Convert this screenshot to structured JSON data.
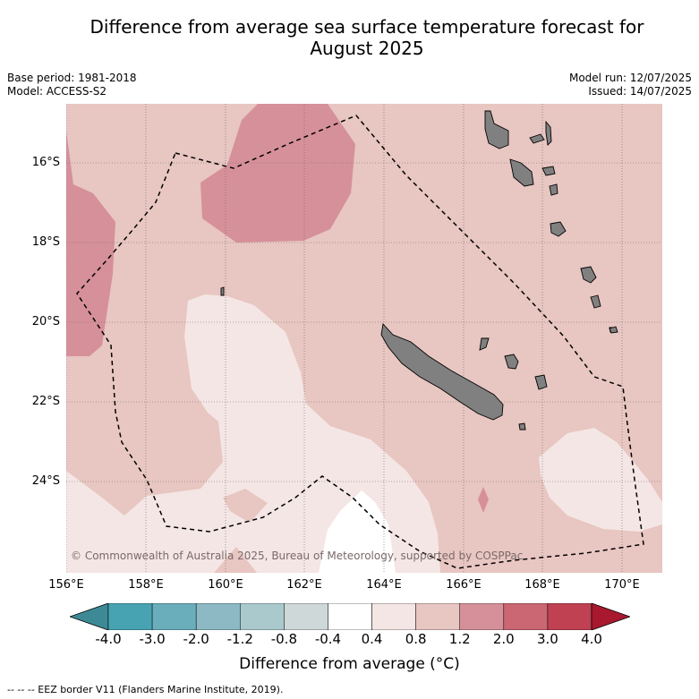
{
  "title_line1": "Difference from average sea surface temperature forecast for",
  "title_line2": "August 2025",
  "meta": {
    "base_period": "Base period: 1981-2018",
    "model": "Model: ACCESS-S2",
    "model_run": "Model run: 12/07/2025",
    "issued": "Issued: 14/07/2025"
  },
  "lat_labels": [
    "16°S",
    "18°S",
    "20°S",
    "22°S",
    "24°S"
  ],
  "lon_labels": [
    "156°E",
    "158°E",
    "160°E",
    "162°E",
    "164°E",
    "166°E",
    "168°E",
    "170°E"
  ],
  "copyright": "© Commonwealth of Australia 2025, Bureau of Meteorology, supported by COSPPac",
  "colorbar": {
    "ticks": [
      "-4.0",
      "-3.0",
      "-2.0",
      "-1.2",
      "-0.8",
      "-0.4",
      "0.4",
      "0.8",
      "1.2",
      "2.0",
      "3.0",
      "4.0"
    ],
    "colors": [
      "#47a3b2",
      "#6aaebb",
      "#8db9c4",
      "#a9c9cd",
      "#cfd8d9",
      "#ffffff",
      "#f4e6e4",
      "#e8c6c1",
      "#d6909a",
      "#cb6673",
      "#bf4152"
    ],
    "under_color": "#3d8a96",
    "over_color": "#a8192f",
    "label": "Difference from average (°C)"
  },
  "legend_footnote": "-- -- -- EEZ border V11 (Flanders Marine Institute, 2019).",
  "map_colors": {
    "base": "#e8c6c1",
    "warm": "#d6909a",
    "light": "#f4e6e4",
    "white": "#ffffff",
    "land": "#808080"
  }
}
